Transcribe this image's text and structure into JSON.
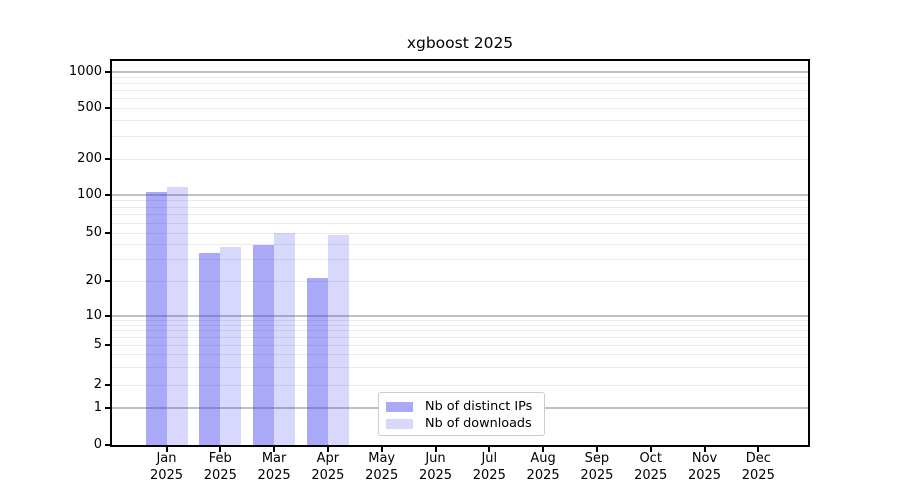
{
  "chart_data": {
    "type": "bar",
    "title": "xgboost 2025",
    "categories": [
      "Jan 2025",
      "Feb 2025",
      "Mar 2025",
      "Apr 2025",
      "May 2025",
      "Jun 2025",
      "Jul 2025",
      "Aug 2025",
      "Sep 2025",
      "Oct 2025",
      "Nov 2025",
      "Dec 2025"
    ],
    "month_labels": [
      "Jan",
      "Feb",
      "Mar",
      "Apr",
      "May",
      "Jun",
      "Jul",
      "Aug",
      "Sep",
      "Oct",
      "Nov",
      "Dec"
    ],
    "year_label": "2025",
    "series": [
      {
        "name": "Nb of distinct IPs",
        "key": "distinct-ips",
        "base_color": "#3c3cf0",
        "opacity": 0.44,
        "composite_hex": "#a9a9f6",
        "values": [
          107,
          34,
          40,
          21,
          0,
          0,
          0,
          0,
          0,
          0,
          0,
          0
        ]
      },
      {
        "name": "Nb of downloads",
        "key": "downloads",
        "base_color": "#3c3cf0",
        "opacity": 0.2,
        "composite_hex": "#dcdcfb",
        "values": [
          117,
          38,
          50,
          48,
          0,
          0,
          0,
          0,
          0,
          0,
          0,
          0
        ]
      }
    ],
    "yscale": "symlog",
    "yticks": [
      0,
      1,
      2,
      5,
      10,
      20,
      50,
      100,
      200,
      500,
      1000
    ],
    "ylim": [
      0,
      1200
    ],
    "xlabel": "",
    "ylabel": "",
    "legend_position": "lower center",
    "grid": true
  },
  "colors": {
    "background": "#ffffff",
    "spine": "#000000",
    "grid_major": "#c0c0c0",
    "grid_minor": "#eaeaea",
    "text": "#000000",
    "legend_border": "#cccccc"
  }
}
